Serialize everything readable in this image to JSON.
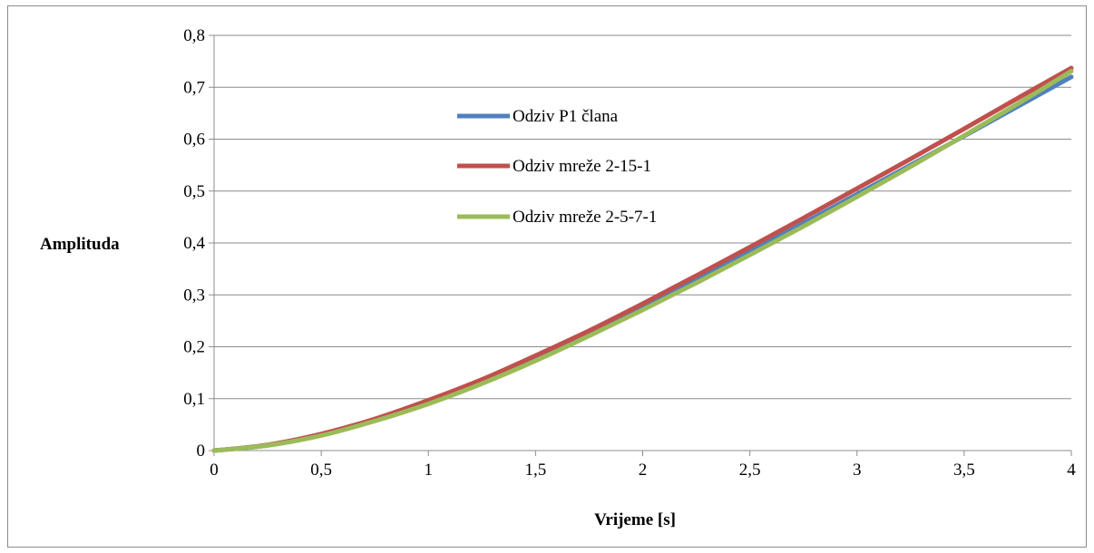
{
  "chart_data": {
    "type": "line",
    "title": "",
    "xlabel": "Vrijeme [s]",
    "ylabel": "Amplituda",
    "xlim": [
      0,
      4
    ],
    "ylim": [
      0,
      0.8
    ],
    "x_ticks": [
      "0",
      "0,5",
      "1",
      "1,5",
      "2",
      "2,5",
      "3",
      "3,5",
      "4"
    ],
    "y_ticks": [
      "0",
      "0,1",
      "0,2",
      "0,3",
      "0,4",
      "0,5",
      "0,6",
      "0,7",
      "0,8"
    ],
    "grid": "horizontal",
    "legend_position": "upper-left inside plot",
    "series": [
      {
        "name": "Odziv P1 člana",
        "color": "#4f81bd",
        "x": [
          0,
          0.25,
          0.5,
          0.75,
          1,
          1.25,
          1.5,
          1.75,
          2,
          2.25,
          2.5,
          2.75,
          3,
          3.25,
          3.5,
          3.75,
          4
        ],
        "y": [
          0,
          0.01,
          0.03,
          0.058,
          0.093,
          0.132,
          0.177,
          0.225,
          0.275,
          0.328,
          0.383,
          0.438,
          0.494,
          0.55,
          0.606,
          0.663,
          0.72
        ]
      },
      {
        "name": "Odziv mreže 2-15-1",
        "color": "#c0504d",
        "x": [
          0,
          0.25,
          0.5,
          0.75,
          1,
          1.25,
          1.5,
          1.75,
          2,
          2.25,
          2.5,
          2.75,
          3,
          3.25,
          3.5,
          3.75,
          4
        ],
        "y": [
          0,
          0.011,
          0.032,
          0.061,
          0.097,
          0.137,
          0.183,
          0.231,
          0.283,
          0.337,
          0.392,
          0.448,
          0.505,
          0.562,
          0.62,
          0.679,
          0.737
        ]
      },
      {
        "name": "Odziv mreže 2-5-7-1",
        "color": "#9bbb59",
        "x": [
          0,
          0.25,
          0.5,
          0.75,
          1,
          1.25,
          1.5,
          1.75,
          2,
          2.25,
          2.5,
          2.75,
          3,
          3.25,
          3.5,
          3.75,
          4
        ],
        "y": [
          0,
          0.01,
          0.029,
          0.057,
          0.09,
          0.129,
          0.173,
          0.221,
          0.271,
          0.323,
          0.377,
          0.432,
          0.489,
          0.547,
          0.607,
          0.668,
          0.731
        ]
      }
    ]
  }
}
